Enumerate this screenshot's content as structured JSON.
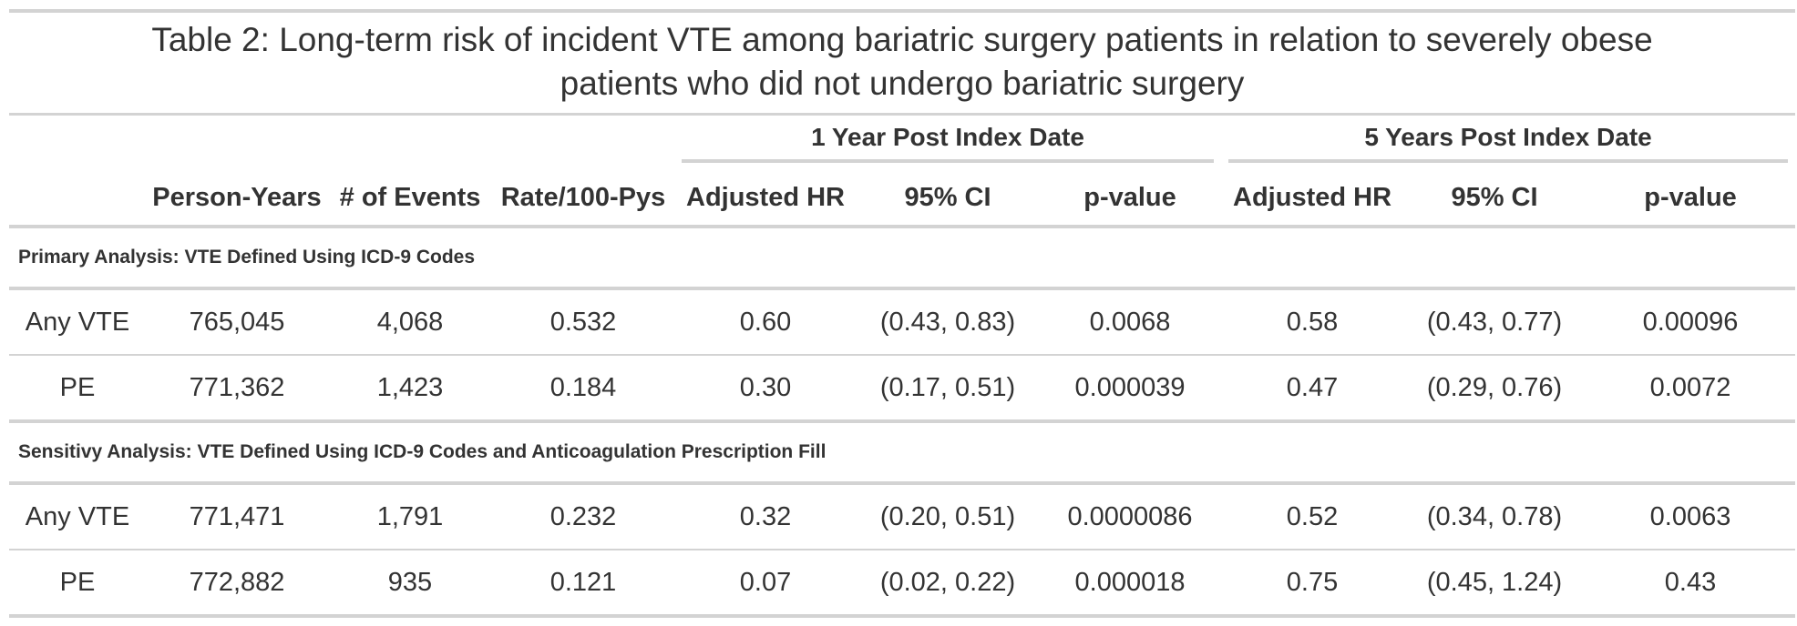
{
  "title": {
    "line1": "Table 2: Long-term risk of incident VTE among bariatric surgery patients in relation to severely obese",
    "line2": "patients who did not undergo bariatric surgery"
  },
  "spanners": {
    "one_year": "1 Year Post Index Date",
    "five_years": "5 Years Post Index Date"
  },
  "columns": [
    "",
    "Person-Years",
    "# of Events",
    "Rate/100-Pys",
    "Adjusted HR",
    "95% CI",
    "p-value",
    "Adjusted HR",
    "95% CI",
    "p-value"
  ],
  "groups": [
    {
      "label": "Primary Analysis: VTE Defined Using ICD-9 Codes",
      "rows": [
        [
          "Any VTE",
          "765,045",
          "4,068",
          "0.532",
          "0.60",
          "(0.43, 0.83)",
          "0.0068",
          "0.58",
          "(0.43, 0.77)",
          "0.00096"
        ],
        [
          "PE",
          "771,362",
          "1,423",
          "0.184",
          "0.30",
          "(0.17, 0.51)",
          "0.000039",
          "0.47",
          "(0.29, 0.76)",
          "0.0072"
        ]
      ]
    },
    {
      "label": "Sensitivy Analysis: VTE Defined Using ICD-9 Codes and Anticoagulation Prescription Fill",
      "rows": [
        [
          "Any VTE",
          "771,471",
          "1,791",
          "0.232",
          "0.32",
          "(0.20, 0.51)",
          "0.0000086",
          "0.52",
          "(0.34, 0.78)",
          "0.0063"
        ],
        [
          "PE",
          "772,882",
          "935",
          "0.121",
          "0.07",
          "(0.02, 0.22)",
          "0.000018",
          "0.75",
          "(0.45, 1.24)",
          "0.43"
        ]
      ]
    }
  ]
}
